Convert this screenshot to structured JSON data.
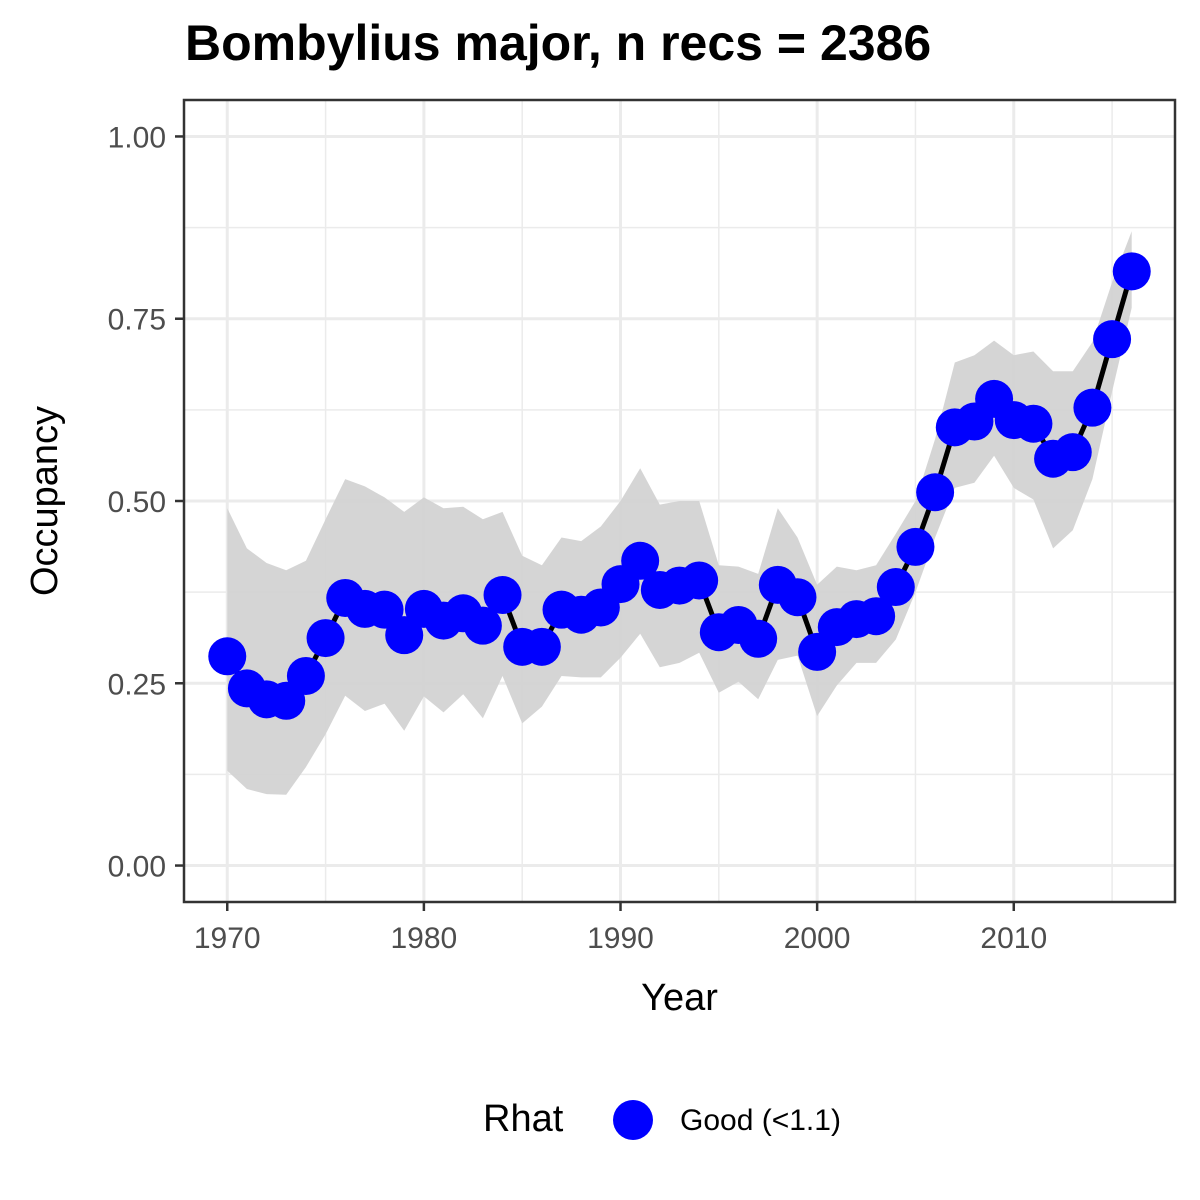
{
  "chart_data": {
    "type": "line",
    "title": "Bombylius major, n recs = 2386",
    "xlabel": "Year",
    "ylabel": "Occupancy",
    "xlim": [
      1967.8,
      2018.2
    ],
    "ylim": [
      -0.05,
      1.05
    ],
    "x_ticks": [
      1970,
      1980,
      1990,
      2000,
      2010
    ],
    "x_tick_labels": [
      "1970",
      "1980",
      "1990",
      "2000",
      "2010"
    ],
    "y_ticks": [
      0,
      0.25,
      0.5,
      0.75,
      1.0
    ],
    "y_tick_labels": [
      "0.00",
      "0.25",
      "0.50",
      "0.75",
      "1.00"
    ],
    "grid": true,
    "legend_position": "bottom",
    "series": [
      {
        "name": "Good (<1.1)",
        "x": [
          1970,
          1971,
          1972,
          1973,
          1974,
          1975,
          1976,
          1977,
          1978,
          1979,
          1980,
          1981,
          1982,
          1983,
          1984,
          1985,
          1986,
          1987,
          1988,
          1989,
          1990,
          1991,
          1992,
          1993,
          1994,
          1995,
          1996,
          1997,
          1998,
          1999,
          2000,
          2001,
          2002,
          2003,
          2004,
          2005,
          2006,
          2007,
          2008,
          2009,
          2010,
          2011,
          2012,
          2013,
          2014,
          2015,
          2016
        ],
        "y": [
          0.287,
          0.243,
          0.228,
          0.226,
          0.26,
          0.312,
          0.367,
          0.352,
          0.351,
          0.316,
          0.352,
          0.336,
          0.346,
          0.329,
          0.371,
          0.3,
          0.3,
          0.351,
          0.344,
          0.354,
          0.386,
          0.418,
          0.378,
          0.384,
          0.391,
          0.32,
          0.33,
          0.311,
          0.385,
          0.368,
          0.293,
          0.327,
          0.338,
          0.342,
          0.382,
          0.437,
          0.512,
          0.601,
          0.609,
          0.64,
          0.611,
          0.606,
          0.558,
          0.567,
          0.628,
          0.722,
          0.815
        ],
        "lower": [
          0.13,
          0.105,
          0.098,
          0.097,
          0.135,
          0.18,
          0.233,
          0.212,
          0.222,
          0.185,
          0.232,
          0.21,
          0.235,
          0.202,
          0.26,
          0.195,
          0.218,
          0.26,
          0.258,
          0.258,
          0.285,
          0.318,
          0.272,
          0.278,
          0.292,
          0.237,
          0.252,
          0.228,
          0.282,
          0.288,
          0.205,
          0.247,
          0.278,
          0.278,
          0.31,
          0.375,
          0.45,
          0.518,
          0.525,
          0.562,
          0.518,
          0.502,
          0.435,
          0.46,
          0.53,
          0.65,
          0.765
        ],
        "upper": [
          0.49,
          0.435,
          0.415,
          0.405,
          0.418,
          0.475,
          0.53,
          0.52,
          0.505,
          0.485,
          0.505,
          0.49,
          0.492,
          0.475,
          0.485,
          0.425,
          0.412,
          0.45,
          0.445,
          0.465,
          0.5,
          0.545,
          0.495,
          0.5,
          0.5,
          0.412,
          0.41,
          0.4,
          0.49,
          0.45,
          0.385,
          0.41,
          0.405,
          0.412,
          0.455,
          0.5,
          0.585,
          0.69,
          0.7,
          0.72,
          0.7,
          0.705,
          0.678,
          0.678,
          0.718,
          0.8,
          0.87
        ]
      }
    ],
    "colors": {
      "point": "#0000ff",
      "line": "#000000",
      "ribbon": "#d3d3d3",
      "grid": "#ebebeb",
      "panel_border": "#333333"
    },
    "legend": {
      "title": "Rhat",
      "label": "Good (<1.1)"
    }
  }
}
